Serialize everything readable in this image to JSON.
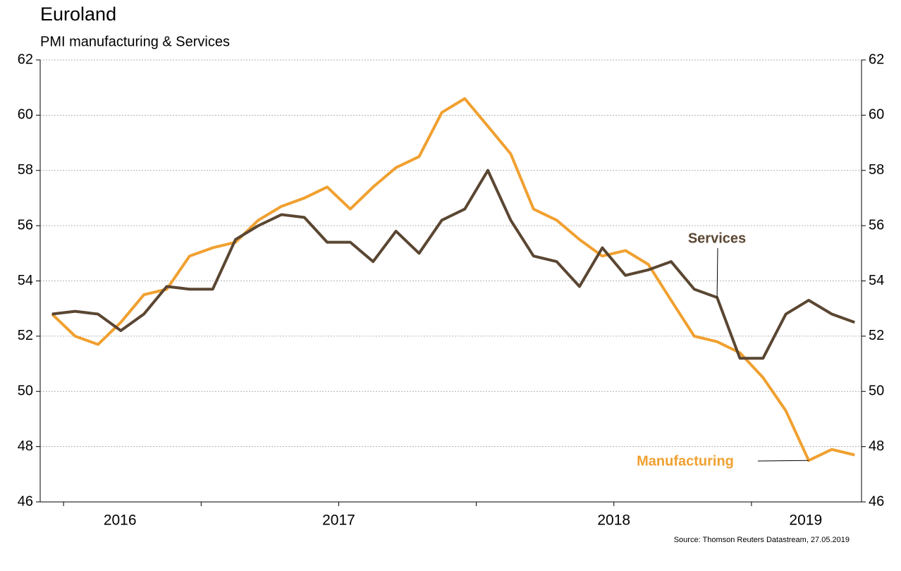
{
  "chart_data": {
    "type": "line",
    "title": "Euroland",
    "subtitle": "PMI manufacturing & Services",
    "source": "Source: Thomson Reuters Datastream, 27.05.2019",
    "x": [
      2016.458,
      2016.542,
      2016.625,
      2016.708,
      2016.792,
      2016.875,
      2016.958,
      2017.042,
      2017.125,
      2017.208,
      2017.292,
      2017.375,
      2017.458,
      2017.542,
      2017.625,
      2017.708,
      2017.792,
      2017.875,
      2017.958,
      2018.042,
      2018.125,
      2018.208,
      2018.292,
      2018.375,
      2018.458,
      2018.542,
      2018.625,
      2018.708,
      2018.792,
      2018.875,
      2018.958,
      2019.042,
      2019.125,
      2019.208,
      2019.292,
      2019.375
    ],
    "series": [
      {
        "name": "Manufacturing",
        "color": "#f0a030",
        "values": [
          52.8,
          52.0,
          51.7,
          52.5,
          53.5,
          53.7,
          54.9,
          55.2,
          55.4,
          56.2,
          56.7,
          57.0,
          57.4,
          56.6,
          57.4,
          58.1,
          58.5,
          60.1,
          60.6,
          59.6,
          58.6,
          56.6,
          56.2,
          55.5,
          54.9,
          55.1,
          54.6,
          53.3,
          52.0,
          51.8,
          51.4,
          50.5,
          49.3,
          47.5,
          47.9,
          47.7
        ]
      },
      {
        "name": "Services",
        "color": "#5a4632",
        "values": [
          52.8,
          52.9,
          52.8,
          52.2,
          52.8,
          53.8,
          53.7,
          53.7,
          55.5,
          56.0,
          56.4,
          56.3,
          55.4,
          55.4,
          54.7,
          55.8,
          55.0,
          56.2,
          56.6,
          58.0,
          56.2,
          54.9,
          54.7,
          53.8,
          55.2,
          54.2,
          54.4,
          54.7,
          53.7,
          53.4,
          51.2,
          51.2,
          52.8,
          53.3,
          52.8,
          52.5
        ]
      }
    ],
    "xlim": [
      2016.415,
      2019.4
    ],
    "xticks": [
      {
        "value": 2016.705,
        "label": "2016"
      },
      {
        "value": 2017.5,
        "label": "2017"
      },
      {
        "value": 2018.5,
        "label": "2018"
      },
      {
        "value": 2019.197,
        "label": "2019"
      }
    ],
    "xtick_marks": [
      2016.5,
      2017,
      2017.5,
      2018,
      2018.5,
      2019
    ],
    "ylim": [
      46,
      62
    ],
    "yticks": [
      46,
      48,
      50,
      52,
      54,
      56,
      58,
      60,
      62
    ],
    "grid": true,
    "annotations": [
      {
        "text": "Services",
        "series": 1,
        "point": 29
      },
      {
        "text": "Manufacturing",
        "series": 0,
        "point": 33
      }
    ]
  }
}
